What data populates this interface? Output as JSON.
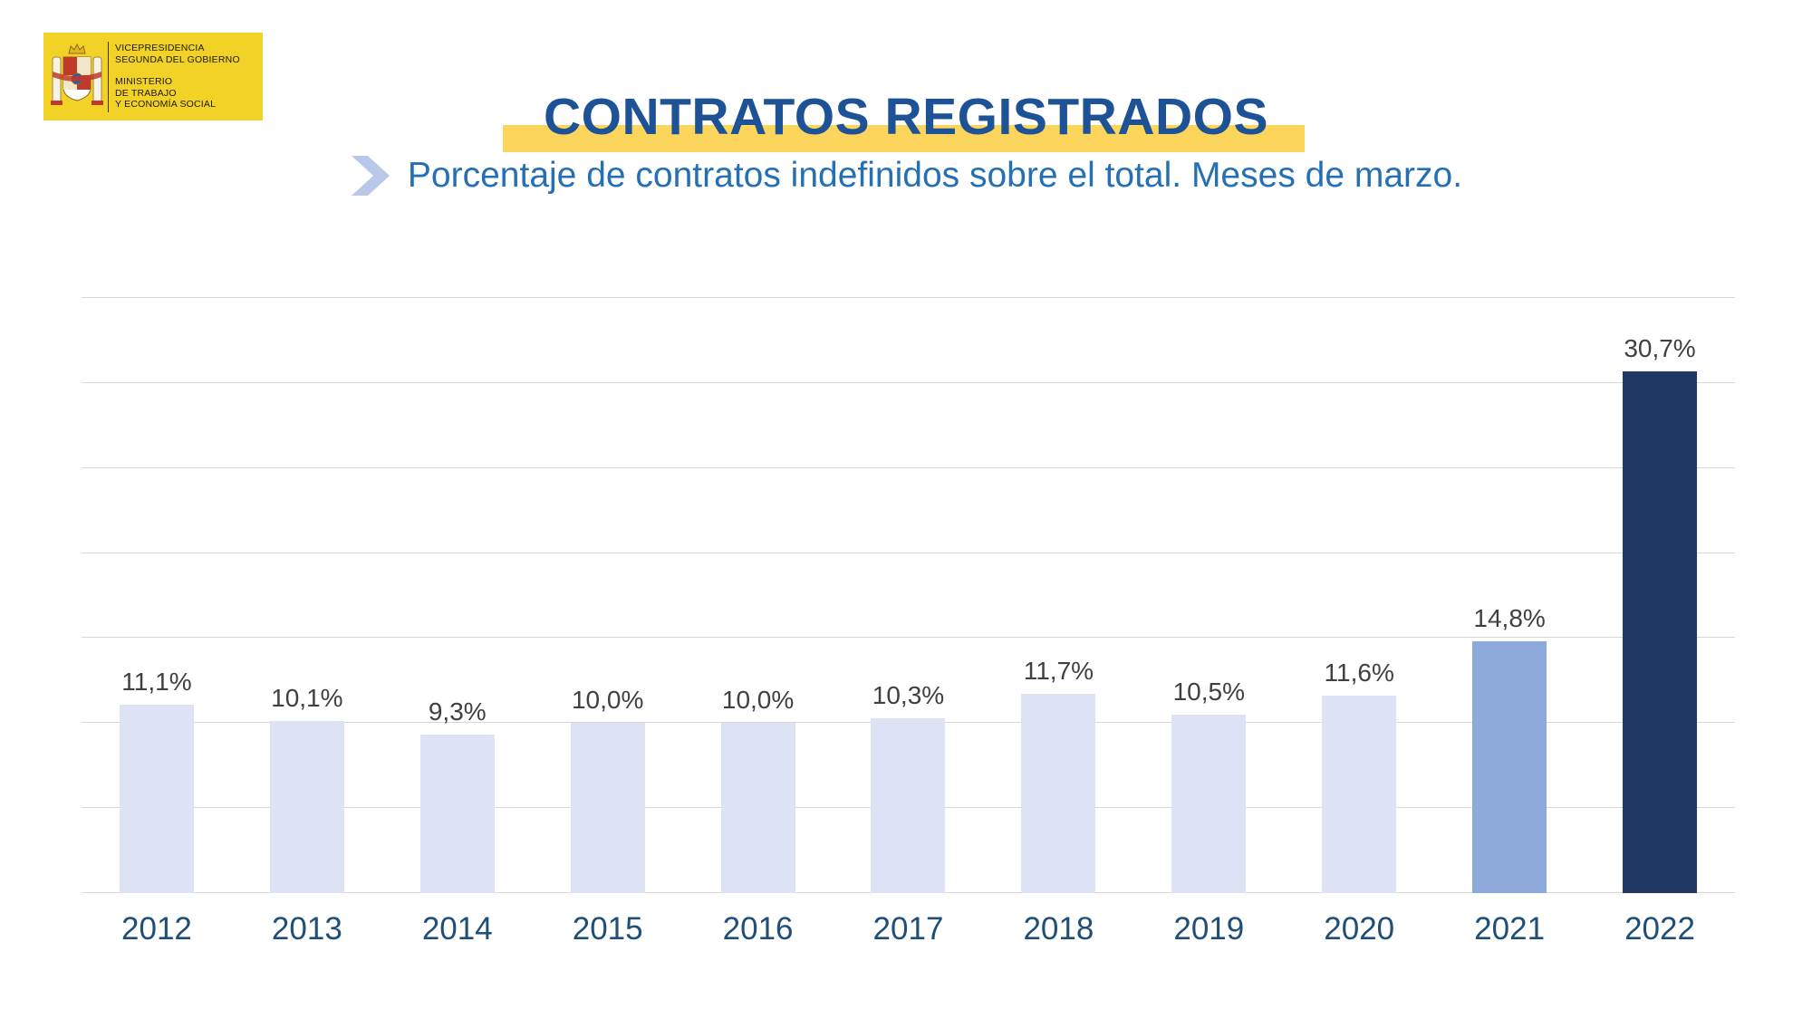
{
  "logo": {
    "lines1": [
      "VICEPRESIDENCIA",
      "SEGUNDA DEL GOBIERNO"
    ],
    "lines2": [
      "MINISTERIO",
      "DE TRABAJO",
      "Y ECONOMÍA SOCIAL"
    ]
  },
  "header": {
    "title": "CONTRATOS REGISTRADOS",
    "subtitle": "Porcentaje de contratos indefinidos sobre el total. Meses de marzo."
  },
  "chart_data": {
    "type": "bar",
    "title": "CONTRATOS REGISTRADOS",
    "subtitle": "Porcentaje de contratos indefinidos sobre el total. Meses de marzo.",
    "categories": [
      "2012",
      "2013",
      "2014",
      "2015",
      "2016",
      "2017",
      "2018",
      "2019",
      "2020",
      "2021",
      "2022"
    ],
    "values": [
      11.1,
      10.1,
      9.3,
      10.0,
      10.0,
      10.3,
      11.7,
      10.5,
      11.6,
      14.8,
      30.7
    ],
    "labels": [
      "11,1%",
      "10,1%",
      "9,3%",
      "10,0%",
      "10,0%",
      "10,3%",
      "11,7%",
      "10,5%",
      "11,6%",
      "14,8%",
      "30,7%"
    ],
    "xlabel": "",
    "ylabel": "",
    "ylim": [
      0,
      35
    ],
    "gridline_step": 5,
    "grid": "horizontal",
    "legend": "none",
    "bar_colors": [
      "light",
      "light",
      "light",
      "light",
      "light",
      "light",
      "light",
      "light",
      "light",
      "medium",
      "dark"
    ],
    "palette": {
      "light": "#dde3f5",
      "medium": "#8eaadb",
      "dark": "#1f3864"
    },
    "colors": {
      "gridline": "#d8d8d8",
      "value_label": "#404040",
      "axis_label": "#1f4e79",
      "title": "#1d5296",
      "subtitle": "#2570b4",
      "highlight": "#fbd55c",
      "logo_background": "#f2d226"
    }
  }
}
